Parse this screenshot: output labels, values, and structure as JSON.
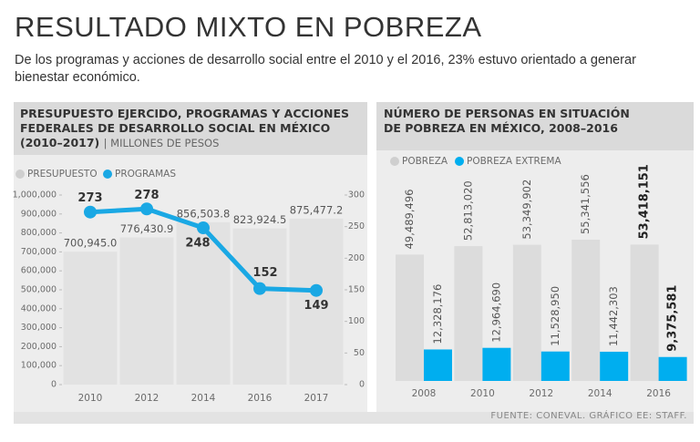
{
  "title": "RESULTADO MIXTO EN POBREZA",
  "subtitle": "De los programas y acciones de desarrollo social entre el 2010 y el 2016, 23% estuvo orientado a generar bienestar económico.",
  "source": "FUENTE: CONEVAL. GRÁFICO EE: STAFF.",
  "chart_data": [
    {
      "type": "bar_line",
      "title": "PRESUPUESTO EJERCIDO, PROGRAMAS Y ACCIONES FEDERALES DE DESARROLLO SOCIAL EN MÉXICO (2010–2017)",
      "units": "| MILLONES DE PESOS",
      "categories": [
        "2010",
        "2012",
        "2014",
        "2016",
        "2017"
      ],
      "series": [
        {
          "name": "PRESUPUESTO",
          "color": "#e2e2e2",
          "values": [
            700945.0,
            776430.9,
            856503.8,
            823924.5,
            875477.2
          ],
          "value_labels": [
            "700,945.0",
            "776,430.9",
            "856,503.8",
            "823,924.5",
            "875,477.2"
          ]
        },
        {
          "name": "PROGRAMAS",
          "color": "#1aa8e4",
          "axis": "y2",
          "values": [
            273,
            278,
            248,
            152,
            149
          ]
        }
      ],
      "ylim": [
        0,
        1000000
      ],
      "yticks": [
        0,
        {
          "value": 100000,
          "label": "100,000"
        },
        {
          "value": 200000,
          "label": "200,000"
        },
        {
          "value": 300000,
          "label": "300,000"
        },
        {
          "value": 400000,
          "label": "400,000"
        },
        {
          "value": 500000,
          "label": "500,000"
        },
        {
          "value": 600000,
          "label": "600,000"
        },
        {
          "value": 700000,
          "label": "700,000"
        },
        {
          "value": 800000,
          "label": "800,000"
        },
        {
          "value": 900000,
          "label": "900,000"
        },
        {
          "value": 1000000,
          "label": "1,000,000"
        }
      ],
      "y2lim": [
        0,
        300
      ],
      "y2ticks": [
        0,
        50,
        100,
        150,
        200,
        250,
        300
      ]
    },
    {
      "type": "grouped_bar",
      "title": "NÚMERO DE PERSONAS EN SITUACIÓN DE POBREZA EN MÉXICO, 2008–2016",
      "categories": [
        "2008",
        "2010",
        "2012",
        "2014",
        "2016"
      ],
      "series": [
        {
          "name": "POBREZA",
          "color": "#dcdcdc",
          "values": [
            49489496,
            52813020,
            53349902,
            55341556,
            53418151
          ],
          "value_labels": [
            "49,489,496",
            "52,813,020",
            "53,349,902",
            "55,341,556",
            "53,418,151"
          ]
        },
        {
          "name": "POBREZA EXTREMA",
          "color": "#00aeef",
          "values": [
            12328176,
            12964690,
            11528950,
            11442303,
            9375581
          ],
          "value_labels": [
            "12,328,176",
            "12,964,690",
            "11,528,950",
            "11,442,303",
            "9,375,581"
          ]
        }
      ]
    }
  ]
}
